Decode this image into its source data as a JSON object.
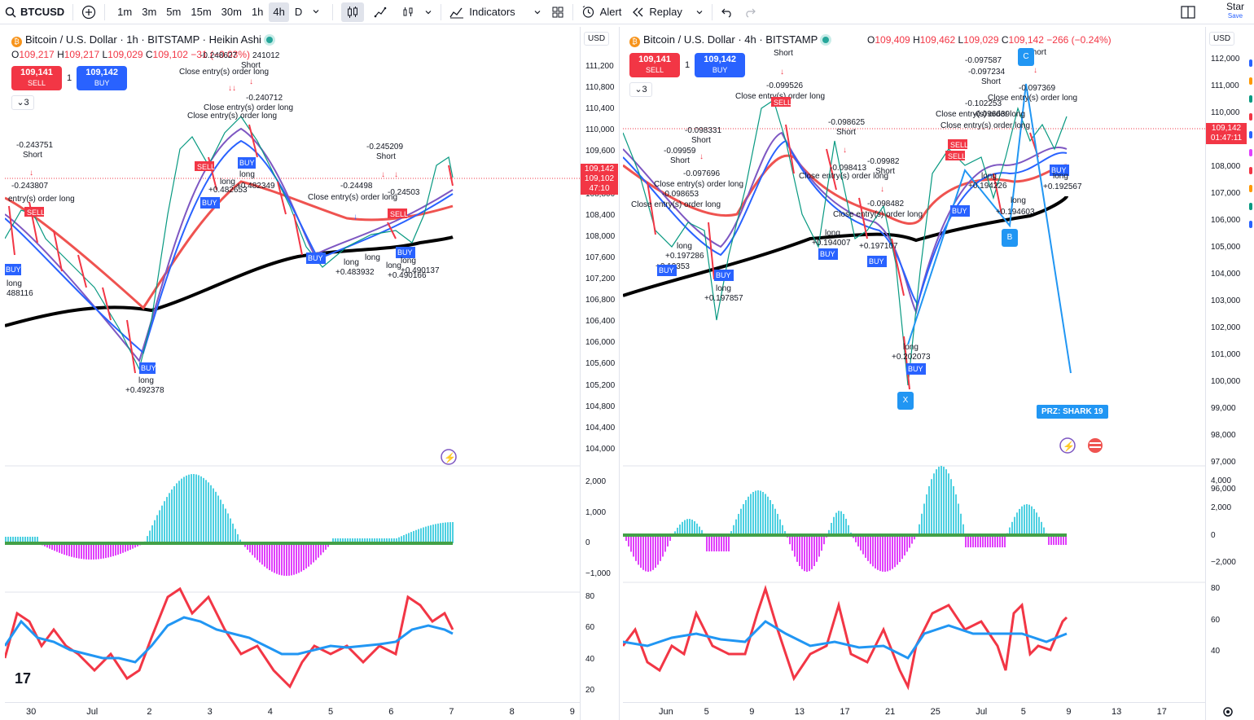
{
  "toolbar": {
    "symbol": "BTCUSD",
    "timeframes": [
      "1m",
      "3m",
      "5m",
      "15m",
      "30m",
      "1h",
      "4h",
      "D"
    ],
    "active_timeframe": "4h",
    "indicators_label": "Indicators",
    "alert_label": "Alert",
    "replay_label": "Replay",
    "star_label": "Star",
    "save_label": "Save"
  },
  "left_chart": {
    "legend_title": "Bitcoin / U.S. Dollar · 1h · BITSTAMP · Heikin Ashi",
    "ohlc_o": "109,217",
    "ohlc_h": "109,217",
    "ohlc_l": "109,029",
    "ohlc_c": "109,102",
    "ohlc_chg": "−31 (−0.03%)",
    "sell_price": "109,141",
    "sell_label": "SELL",
    "spread": "1",
    "buy_price": "109,142",
    "buy_label": "BUY",
    "collapse_count": "3",
    "currency": "USD",
    "price_ticks": [
      "111,200",
      "110,800",
      "110,400",
      "110,000",
      "109,600",
      "109,200",
      "108,800",
      "108,400",
      "108,000",
      "107,600",
      "107,200",
      "106,800",
      "106,400",
      "106,000",
      "105,600",
      "105,200",
      "104,800",
      "104,400",
      "104,000"
    ],
    "price_tag_1": "109,142",
    "price_tag_2": "109,102",
    "price_tag_3": "47:10",
    "osc_ticks": [
      "2,000",
      "1,000",
      "0",
      "−1,000"
    ],
    "rsi_ticks": [
      "80",
      "60",
      "40",
      "20"
    ],
    "x_labels": [
      "30",
      "Jul",
      "2",
      "3",
      "4",
      "5",
      "6",
      "7",
      "8",
      "9"
    ]
  },
  "right_chart": {
    "legend_title": "Bitcoin / U.S. Dollar · 4h · BITSTAMP",
    "ohlc_o": "109,409",
    "ohlc_h": "109,462",
    "ohlc_l": "109,029",
    "ohlc_c": "109,142",
    "ohlc_chg": "−266 (−0.24%)",
    "sell_price": "109,141",
    "sell_label": "SELL",
    "spread": "1",
    "buy_price": "109,142",
    "buy_label": "BUY",
    "collapse_count": "3",
    "currency": "USD",
    "price_ticks": [
      "112,000",
      "111,000",
      "110,000",
      "109,000",
      "108,000",
      "107,000",
      "106,000",
      "105,000",
      "104,000",
      "103,000",
      "102,000",
      "101,000",
      "100,000",
      "99,000",
      "98,000",
      "97,000",
      "96,000"
    ],
    "price_tag_1": "109,142",
    "price_tag_2": "01:47:11",
    "osc_ticks": [
      "4,000",
      "2,000",
      "0",
      "−2,000"
    ],
    "rsi_ticks": [
      "80",
      "60",
      "40"
    ],
    "x_labels": [
      "Jun",
      "5",
      "9",
      "13",
      "17",
      "21",
      "25",
      "Jul",
      "5",
      "9",
      "13",
      "17"
    ],
    "prz_label": "PRZ: SHARK 19",
    "points": [
      "X",
      "B",
      "C"
    ]
  },
  "annotations": {
    "short": "Short",
    "long": "long",
    "close_long": "Close entry(s) order long",
    "entry_long": "entry(s) order long",
    "left_values": [
      "-0.243751",
      "-0.243807",
      "-0.248627",
      "241012",
      "-0.240712",
      "-0.245209",
      "-0.24498",
      "-0.24503",
      "+0.482653",
      "+0.482349",
      "+0.492378",
      "+0.483932",
      "+0.490166",
      "+0.490137",
      "488116"
    ],
    "right_values": [
      "-0.099526",
      "-0.098331",
      "-0.09959",
      "-0.097696",
      "-0.098653",
      "-0.098625",
      "-0.098413",
      "-0.09982",
      "-0.098482",
      "-0.097587",
      "-0.097234",
      "-0.102253",
      "-0.096639",
      "-0.097369",
      "+0.197286",
      "+0.19353",
      "+0.197857",
      "+0.194007",
      "+0.197107",
      "+0.202073",
      "+0.194226",
      "+0.194603",
      "+0.192567"
    ]
  },
  "colors": {
    "red": "#f23645",
    "blue": "#2962ff",
    "green": "#089981",
    "ma_black": "#000000",
    "ma_red": "#ef5350",
    "teal": "#26c6da",
    "magenta": "#e040fb"
  }
}
